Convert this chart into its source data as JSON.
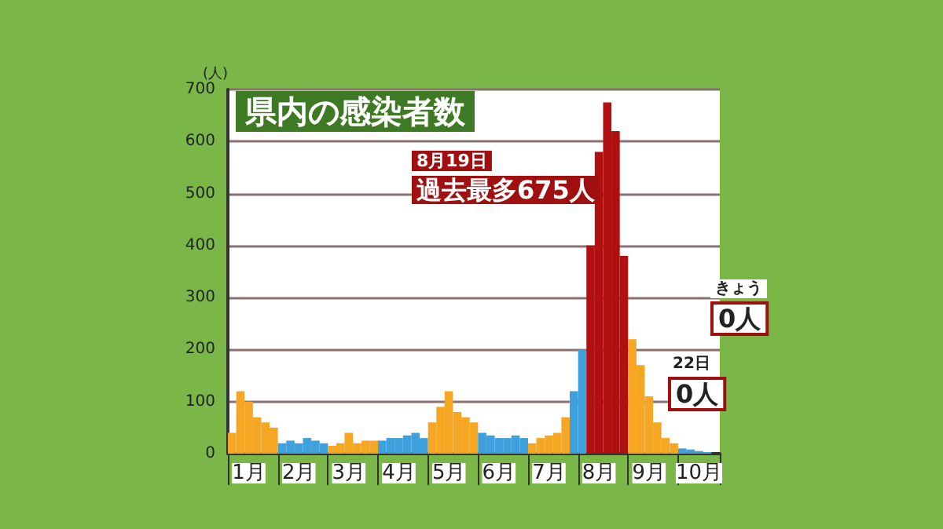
{
  "chart_data": {
    "type": "bar",
    "title": "県内の感染者数",
    "ylabel": "(人)",
    "categories": [
      null,
      null,
      "1月",
      null,
      null,
      null,
      null,
      null,
      "2月",
      null,
      null,
      null,
      null,
      null,
      "3月",
      null,
      null,
      null,
      null,
      null,
      "4月",
      null,
      null,
      null,
      null,
      null,
      "5月",
      null,
      null,
      null,
      null,
      null,
      "6月",
      null,
      null,
      null,
      null,
      null,
      "7月",
      null,
      null,
      null,
      null,
      null,
      "8月",
      null,
      null,
      null,
      null,
      null,
      "9月",
      null,
      null,
      null,
      null,
      null,
      "10月",
      null,
      null
    ],
    "values": [
      40,
      120,
      100,
      70,
      60,
      50,
      20,
      25,
      20,
      30,
      25,
      20,
      15,
      20,
      40,
      20,
      25,
      25,
      25,
      30,
      30,
      35,
      40,
      30,
      60,
      90,
      120,
      80,
      70,
      60,
      40,
      35,
      30,
      30,
      35,
      30,
      20,
      30,
      35,
      40,
      70,
      120,
      200,
      400,
      580,
      675,
      620,
      380,
      220,
      170,
      110,
      60,
      30,
      20,
      10,
      8,
      5,
      3,
      0
    ],
    "colors": [
      "#f5a623",
      "#f5a623",
      "#f5a623",
      "#f5a623",
      "#f5a623",
      "#f5a623",
      "#3ea0dc",
      "#3ea0dc",
      "#3ea0dc",
      "#3ea0dc",
      "#3ea0dc",
      "#3ea0dc",
      "#f5a623",
      "#f5a623",
      "#f5a623",
      "#f5a623",
      "#f5a623",
      "#f5a623",
      "#3ea0dc",
      "#3ea0dc",
      "#3ea0dc",
      "#3ea0dc",
      "#3ea0dc",
      "#3ea0dc",
      "#f5a623",
      "#f5a623",
      "#f5a623",
      "#f5a623",
      "#f5a623",
      "#f5a623",
      "#3ea0dc",
      "#3ea0dc",
      "#3ea0dc",
      "#3ea0dc",
      "#3ea0dc",
      "#3ea0dc",
      "#f5a623",
      "#f5a623",
      "#f5a623",
      "#f5a623",
      "#f5a623",
      "#3ea0dc",
      "#3ea0dc",
      "#b01010",
      "#b01010",
      "#b01010",
      "#b01010",
      "#b01010",
      "#f5a623",
      "#f5a623",
      "#f5a623",
      "#f5a623",
      "#f5a623",
      "#f5a623",
      "#3ea0dc",
      "#3ea0dc",
      "#3ea0dc",
      "#3ea0dc",
      "#3ea0dc"
    ],
    "ylim": [
      0,
      700
    ],
    "yticks": [
      0,
      100,
      200,
      300,
      400,
      500,
      600,
      700
    ],
    "grid": "y",
    "annotations": [
      "8月19日",
      "過去最多675人",
      "きょう",
      "0人",
      "22日",
      "0人"
    ]
  }
}
